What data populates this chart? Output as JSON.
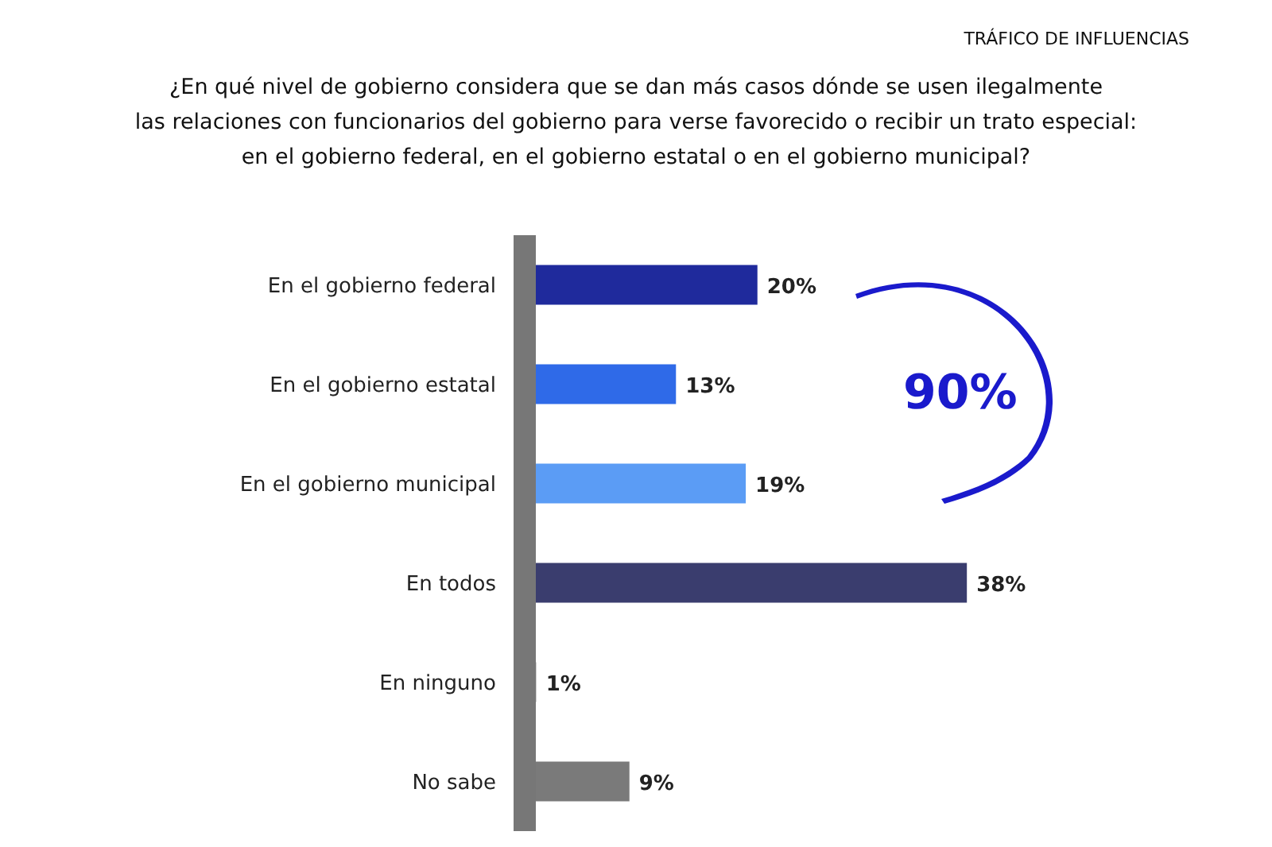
{
  "chart_data": {
    "type": "bar",
    "orientation": "horizontal",
    "title": "TRÁFICO DE INFLUENCIAS",
    "subtitle": "¿En qué nivel de gobierno considera que se dan más casos dónde se usen ilegalmente\nlas relaciones con funcionarios del gobierno para verse favorecido o recibir un trato especial:\nen el gobierno federal, en el gobierno estatal o en el gobierno municipal?",
    "categories": [
      "En el gobierno federal",
      "En el gobierno estatal",
      "En el gobierno municipal",
      "En todos",
      "En ninguno",
      "No sabe"
    ],
    "values": [
      20,
      13,
      19,
      38,
      1,
      9
    ],
    "colors": [
      "#1f2a9c",
      "#2f6ae8",
      "#5b9cf5",
      "#3a3d6e",
      "#b5b5b5",
      "#7a7a7a"
    ],
    "value_labels": [
      "20%",
      "13%",
      "19%",
      "38%",
      "1%",
      "9%"
    ],
    "annotations": [
      "90%"
    ],
    "tick_labels": "y"
  }
}
